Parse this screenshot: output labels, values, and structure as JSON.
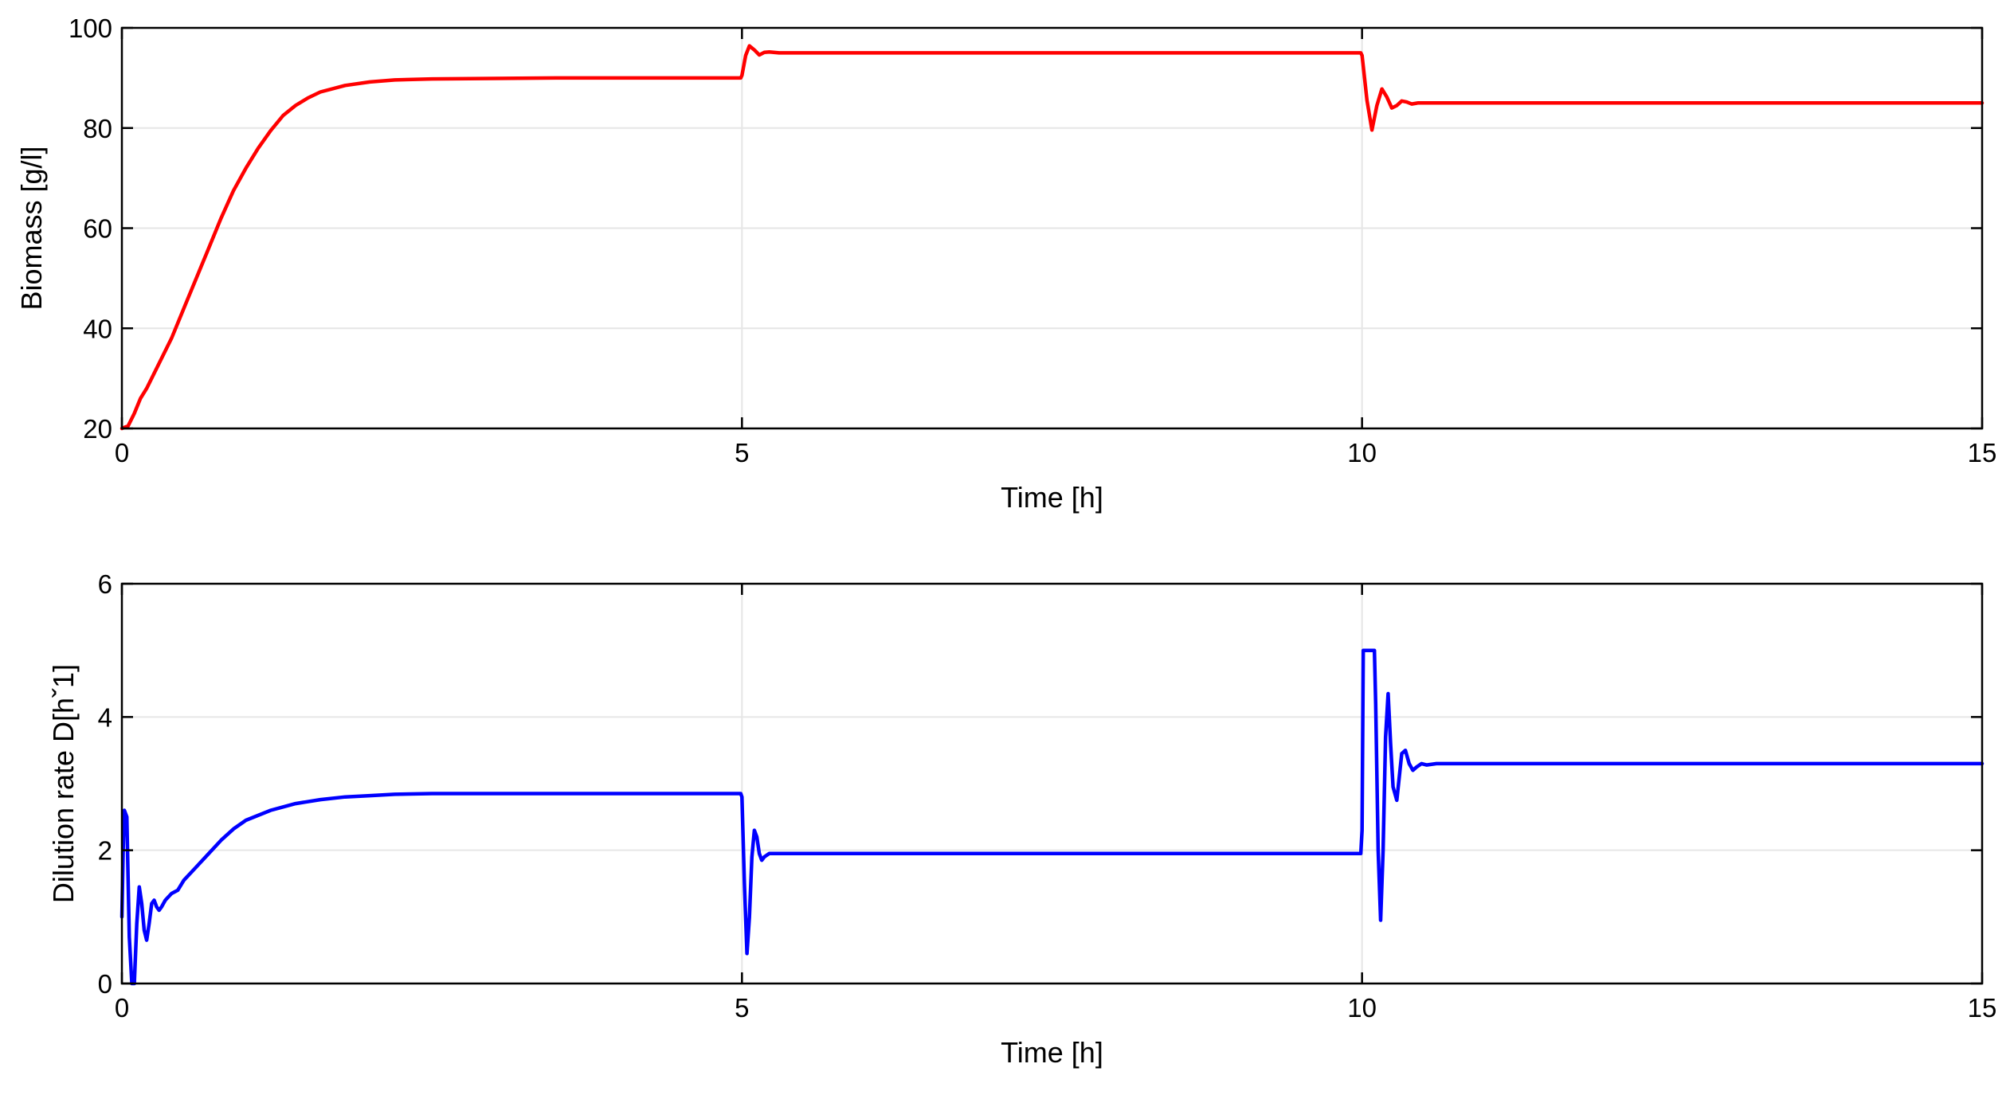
{
  "chart_data": [
    {
      "type": "line",
      "xlabel": "Time [h]",
      "ylabel": "Biomass [g/l]",
      "xlim": [
        0,
        15
      ],
      "ylim": [
        20,
        100
      ],
      "xticks": [
        0,
        5,
        10,
        15
      ],
      "yticks": [
        20,
        40,
        60,
        80,
        100
      ],
      "xtick_labels": [
        "0",
        "5",
        "10",
        "15"
      ],
      "ytick_labels": [
        "20",
        "40",
        "60",
        "80",
        "100"
      ],
      "grid": true,
      "color": "#ff0000",
      "series": [
        {
          "x": [
            0,
            0.05,
            0.1,
            0.15,
            0.2,
            0.3,
            0.4,
            0.5,
            0.6,
            0.7,
            0.8,
            0.9,
            1.0,
            1.1,
            1.2,
            1.3,
            1.4,
            1.5,
            1.6,
            1.8,
            2.0,
            2.2,
            2.5,
            3.0,
            3.5,
            4.0,
            4.5,
            4.99,
            5.0,
            5.03,
            5.06,
            5.1,
            5.14,
            5.18,
            5.22,
            5.3,
            5.5,
            6.0,
            7.0,
            8.0,
            9.0,
            9.99,
            10.0,
            10.04,
            10.08,
            10.12,
            10.16,
            10.2,
            10.24,
            10.28,
            10.32,
            10.36,
            10.4,
            10.45,
            10.5,
            10.6,
            11.0,
            12.0,
            13.0,
            14.0,
            15.0
          ],
          "y": [
            20,
            20.5,
            23,
            26,
            28,
            33,
            38,
            44,
            50,
            56,
            62,
            67.5,
            72,
            76,
            79.5,
            82.5,
            84.5,
            86,
            87.2,
            88.5,
            89.2,
            89.6,
            89.8,
            89.9,
            90.0,
            90.0,
            90.0,
            90.0,
            90.5,
            94.5,
            96.4,
            95.6,
            94.6,
            95.1,
            95.2,
            95.0,
            95.0,
            95.0,
            95.0,
            95.0,
            95.0,
            95.0,
            94.5,
            85.5,
            79.6,
            84.5,
            87.8,
            86.2,
            84.0,
            84.5,
            85.4,
            85.2,
            84.8,
            85.0,
            85.0,
            85.0,
            85.0,
            85.0,
            85.0,
            85.0,
            85.0
          ]
        }
      ]
    },
    {
      "type": "line",
      "xlabel": "Time [h]",
      "ylabel": "Dilution rate D[hˇ1]",
      "xlim": [
        0,
        15
      ],
      "ylim": [
        0,
        6
      ],
      "xticks": [
        0,
        5,
        10,
        15
      ],
      "yticks": [
        0,
        2,
        4,
        6
      ],
      "xtick_labels": [
        "0",
        "5",
        "10",
        "15"
      ],
      "ytick_labels": [
        "0",
        "2",
        "4",
        "6"
      ],
      "grid": true,
      "color": "#0000ff",
      "series": [
        {
          "x": [
            0,
            0.01,
            0.02,
            0.04,
            0.06,
            0.08,
            0.1,
            0.12,
            0.14,
            0.16,
            0.18,
            0.2,
            0.22,
            0.24,
            0.26,
            0.28,
            0.3,
            0.32,
            0.35,
            0.4,
            0.45,
            0.5,
            0.6,
            0.7,
            0.8,
            0.9,
            1.0,
            1.2,
            1.4,
            1.6,
            1.8,
            2.0,
            2.2,
            2.5,
            3.0,
            3.5,
            4.0,
            4.5,
            4.99,
            5.0,
            5.02,
            5.04,
            5.06,
            5.08,
            5.1,
            5.12,
            5.14,
            5.16,
            5.18,
            5.22,
            5.26,
            5.3,
            5.4,
            6.0,
            7.0,
            8.0,
            9.0,
            9.99,
            10.0,
            10.01,
            10.1,
            10.11,
            10.13,
            10.15,
            10.17,
            10.19,
            10.21,
            10.23,
            10.25,
            10.28,
            10.3,
            10.32,
            10.35,
            10.38,
            10.41,
            10.44,
            10.48,
            10.52,
            10.6,
            11.0,
            12.0,
            13.0,
            14.0,
            15.0
          ],
          "y": [
            1.0,
            2.0,
            2.6,
            2.5,
            0.7,
            0.0,
            0.0,
            0.9,
            1.45,
            1.2,
            0.8,
            0.65,
            0.9,
            1.2,
            1.25,
            1.15,
            1.1,
            1.15,
            1.25,
            1.35,
            1.4,
            1.55,
            1.75,
            1.95,
            2.15,
            2.32,
            2.45,
            2.6,
            2.7,
            2.76,
            2.8,
            2.82,
            2.84,
            2.85,
            2.85,
            2.85,
            2.85,
            2.85,
            2.85,
            2.8,
            1.5,
            0.45,
            1.0,
            1.9,
            2.3,
            2.2,
            1.95,
            1.85,
            1.9,
            1.95,
            1.95,
            1.95,
            1.95,
            1.95,
            1.95,
            1.95,
            1.95,
            1.95,
            2.3,
            5.0,
            5.0,
            4.2,
            2.0,
            0.95,
            2.0,
            3.7,
            4.35,
            3.6,
            2.95,
            2.75,
            3.1,
            3.45,
            3.5,
            3.3,
            3.2,
            3.25,
            3.3,
            3.28,
            3.3,
            3.3,
            3.3,
            3.3,
            3.3,
            3.3
          ]
        }
      ]
    }
  ]
}
